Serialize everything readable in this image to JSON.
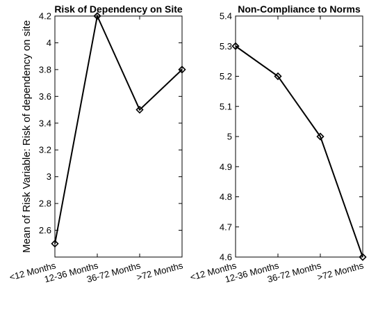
{
  "chart_data": [
    {
      "type": "line",
      "title": "Risk of Dependency on Site",
      "ylabel": "Mean of Risk Variable: Risk of dependency on site",
      "categories": [
        "<12 Months",
        "12-36 Months",
        "36-72 Months",
        ">72 Months"
      ],
      "values": [
        2.5,
        4.2,
        3.5,
        3.8
      ],
      "ylim": [
        2.4,
        4.2
      ],
      "yticks": [
        "2.6",
        "2.8",
        "3",
        "3.2",
        "3.4",
        "3.6",
        "3.8",
        "4",
        "4.2"
      ],
      "ytick_values": [
        2.6,
        2.8,
        3.0,
        3.2,
        3.4,
        3.6,
        3.8,
        4.0,
        4.2
      ],
      "grid": false,
      "marker": "diamond",
      "color": "#000000"
    },
    {
      "type": "line",
      "title": "Non-Compliance to Norms",
      "ylabel": "",
      "categories": [
        "<12 Months",
        "12-36 Months",
        "36-72 Months",
        ">72 Months"
      ],
      "values": [
        5.3,
        5.2,
        5.0,
        4.6
      ],
      "ylim": [
        4.6,
        5.4
      ],
      "yticks": [
        "4.6",
        "4.7",
        "4.8",
        "4.9",
        "5",
        "5.1",
        "5.2",
        "5.3",
        "5.4"
      ],
      "ytick_values": [
        4.6,
        4.7,
        4.8,
        4.9,
        5.0,
        5.1,
        5.2,
        5.3,
        5.4
      ],
      "grid": false,
      "marker": "diamond",
      "color": "#000000"
    }
  ]
}
